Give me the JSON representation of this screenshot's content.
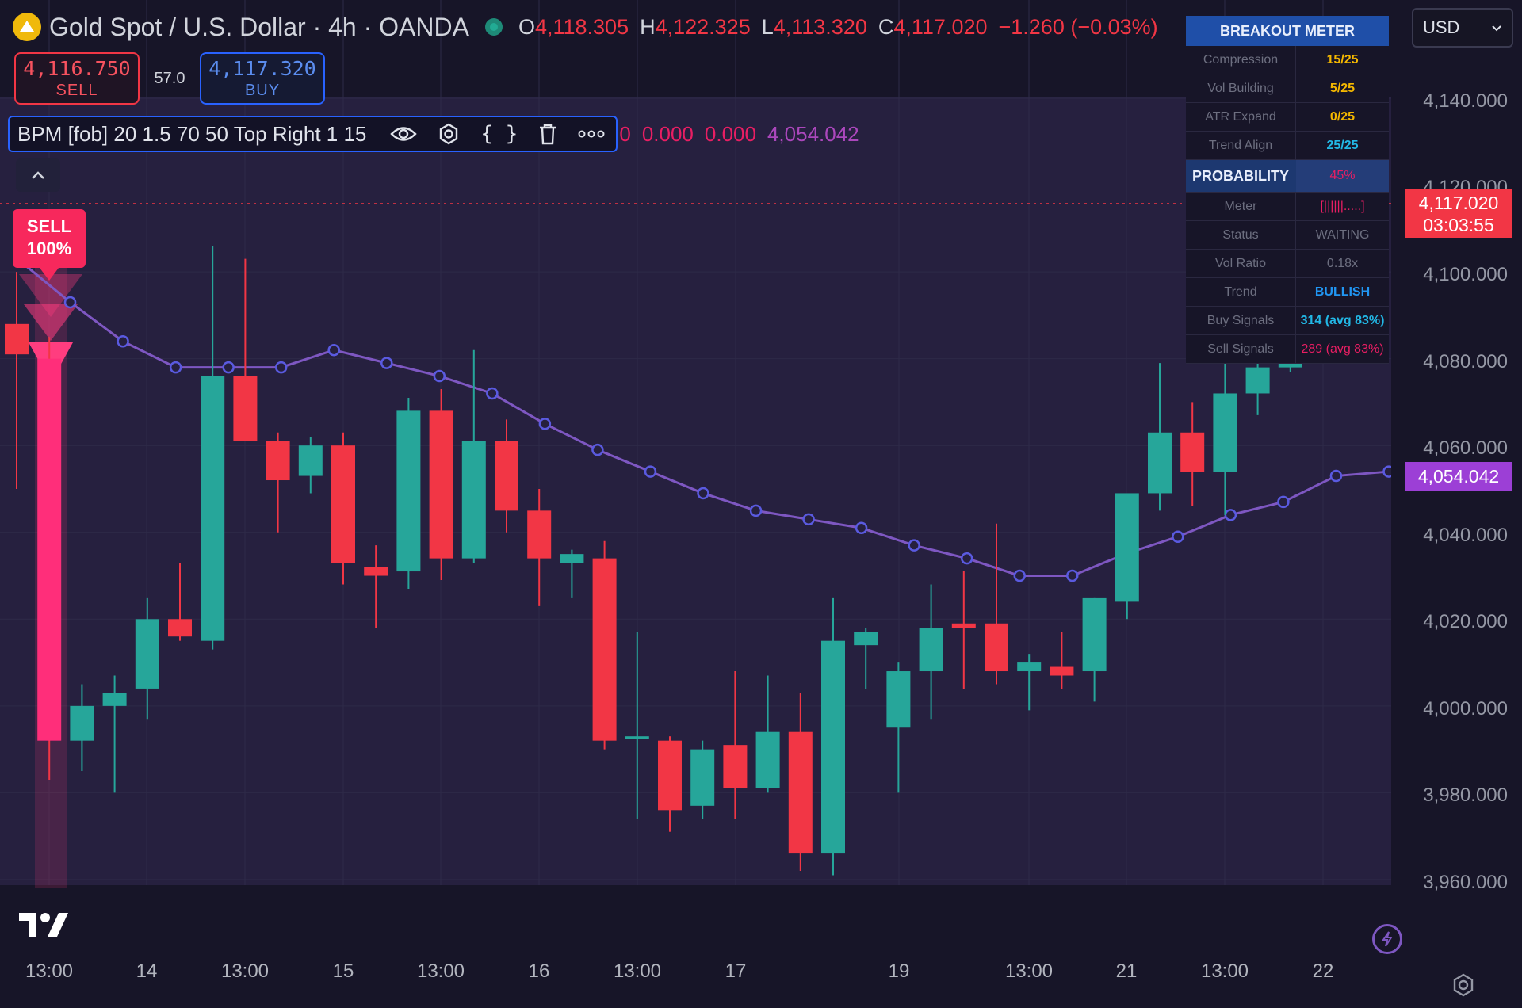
{
  "header": {
    "symbol_title": "Gold Spot / U.S. Dollar · 4h · OANDA",
    "ohlc": [
      {
        "key": "O",
        "value": "4,118.305"
      },
      {
        "key": "H",
        "value": "4,122.325"
      },
      {
        "key": "L",
        "value": "4,113.320"
      },
      {
        "key": "C",
        "value": "4,117.020"
      }
    ],
    "change": "−1.260 (−0.03%)"
  },
  "trade": {
    "sell_price": "4,116.750",
    "sell_label": "SELL",
    "spread": "57.0",
    "buy_price": "4,117.320",
    "buy_label": "BUY"
  },
  "indicator": {
    "name": "BPM [fob] 20 1.5 70 50 Top Right 1 15",
    "values": [
      "0",
      "0.000",
      "0.000",
      "4,054.042"
    ]
  },
  "signal": {
    "line1": "SELL",
    "line2": "100%"
  },
  "currency_select": "USD",
  "meter": {
    "title": "BREAKOUT METER",
    "rows": [
      {
        "label": "Compression",
        "value": "15/25"
      },
      {
        "label": "Vol Building",
        "value": "5/25"
      },
      {
        "label": "ATR Expand",
        "value": "0/25"
      },
      {
        "label": "Trend Align",
        "value": "25/25"
      }
    ],
    "probability_label": "PROBABILITY",
    "probability_value": "45%",
    "rows2": [
      {
        "label": "Meter",
        "value": "[||||||.....]"
      },
      {
        "label": "Status",
        "value": "WAITING"
      },
      {
        "label": "Vol Ratio",
        "value": "0.18x"
      },
      {
        "label": "Trend",
        "value": "BULLISH"
      },
      {
        "label": "Buy Signals",
        "value": "314 (avg 83%)"
      },
      {
        "label": "Sell Signals",
        "value": "289 (avg 83%)"
      }
    ]
  },
  "price_axis": {
    "labels": [
      "4,140.000",
      "4,120.000",
      "4,100.000",
      "4,080.000",
      "4,060.000",
      "4,040.000",
      "4,020.000",
      "4,000.000",
      "3,980.000",
      "3,960.000"
    ],
    "current_price": "4,117.020",
    "countdown": "03:03:55",
    "ema_price": "4,054.042"
  },
  "time_axis": {
    "labels": [
      "13:00",
      "14",
      "13:00",
      "15",
      "13:00",
      "16",
      "13:00",
      "17",
      "19",
      "13:00",
      "21",
      "13:00",
      "22"
    ]
  },
  "colors": {
    "bull": "#26a69a",
    "bear": "#f23645",
    "ema": "#7e57c2",
    "sell_signal": "#f7285c",
    "panel_header": "#1f4fa8"
  },
  "chart_data": {
    "type": "candlestick",
    "ylim": [
      3955,
      4150
    ],
    "candles": [
      {
        "o": 4088,
        "h": 4100,
        "l": 4050,
        "c": 4081
      },
      {
        "o": 4080,
        "h": 4085,
        "l": 3983,
        "c": 3992
      },
      {
        "o": 3992,
        "h": 4005,
        "l": 3985,
        "c": 4000
      },
      {
        "o": 4000,
        "h": 4007,
        "l": 3980,
        "c": 4003
      },
      {
        "o": 4004,
        "h": 4025,
        "l": 3997,
        "c": 4020
      },
      {
        "o": 4020,
        "h": 4033,
        "l": 4015,
        "c": 4016
      },
      {
        "o": 4015,
        "h": 4106,
        "l": 4013,
        "c": 4076
      },
      {
        "o": 4076,
        "h": 4103,
        "l": 4062,
        "c": 4061
      },
      {
        "o": 4061,
        "h": 4063,
        "l": 4040,
        "c": 4052
      },
      {
        "o": 4053,
        "h": 4062,
        "l": 4049,
        "c": 4060
      },
      {
        "o": 4060,
        "h": 4063,
        "l": 4028,
        "c": 4033
      },
      {
        "o": 4032,
        "h": 4037,
        "l": 4018,
        "c": 4030
      },
      {
        "o": 4031,
        "h": 4071,
        "l": 4027,
        "c": 4068
      },
      {
        "o": 4068,
        "h": 4073,
        "l": 4029,
        "c": 4034
      },
      {
        "o": 4034,
        "h": 4082,
        "l": 4033,
        "c": 4061
      },
      {
        "o": 4061,
        "h": 4066,
        "l": 4040,
        "c": 4045
      },
      {
        "o": 4045,
        "h": 4050,
        "l": 4023,
        "c": 4034
      },
      {
        "o": 4033,
        "h": 4036,
        "l": 4025,
        "c": 4035
      },
      {
        "o": 4034,
        "h": 4038,
        "l": 3990,
        "c": 3992
      },
      {
        "o": 3993,
        "h": 4017,
        "l": 3974,
        "c": 3993
      },
      {
        "o": 3992,
        "h": 3993,
        "l": 3971,
        "c": 3976
      },
      {
        "o": 3977,
        "h": 3992,
        "l": 3974,
        "c": 3990
      },
      {
        "o": 3991,
        "h": 4008,
        "l": 3974,
        "c": 3981
      },
      {
        "o": 3981,
        "h": 4007,
        "l": 3980,
        "c": 3994
      },
      {
        "o": 3994,
        "h": 4003,
        "l": 3962,
        "c": 3966
      },
      {
        "o": 3966,
        "h": 4025,
        "l": 3961,
        "c": 4015
      },
      {
        "o": 4014,
        "h": 4018,
        "l": 4004,
        "c": 4017
      },
      {
        "o": 3995,
        "h": 4010,
        "l": 3980,
        "c": 4008
      },
      {
        "o": 4008,
        "h": 4028,
        "l": 3997,
        "c": 4018
      },
      {
        "o": 4019,
        "h": 4031,
        "l": 4004,
        "c": 4018
      },
      {
        "o": 4019,
        "h": 4042,
        "l": 4005,
        "c": 4008
      },
      {
        "o": 4008,
        "h": 4012,
        "l": 3999,
        "c": 4010
      },
      {
        "o": 4009,
        "h": 4017,
        "l": 4004,
        "c": 4007
      },
      {
        "o": 4008,
        "h": 4025,
        "l": 4001,
        "c": 4025
      },
      {
        "o": 4024,
        "h": 4049,
        "l": 4020,
        "c": 4049
      },
      {
        "o": 4049,
        "h": 4079,
        "l": 4045,
        "c": 4063
      },
      {
        "o": 4063,
        "h": 4070,
        "l": 4046,
        "c": 4054
      },
      {
        "o": 4054,
        "h": 4081,
        "l": 4044,
        "c": 4072
      },
      {
        "o": 4072,
        "h": 4081,
        "l": 4067,
        "c": 4078
      },
      {
        "o": 4078,
        "h": 4092,
        "l": 4077,
        "c": 4081
      }
    ],
    "ema": [
      4103,
      4093,
      4084,
      4078,
      4078,
      4078,
      4082,
      4079,
      4076,
      4072,
      4065,
      4059,
      4054,
      4049,
      4045,
      4043,
      4041,
      4037,
      4034,
      4030,
      4030,
      4035,
      4039,
      4044,
      4047,
      4053,
      4054
    ]
  }
}
